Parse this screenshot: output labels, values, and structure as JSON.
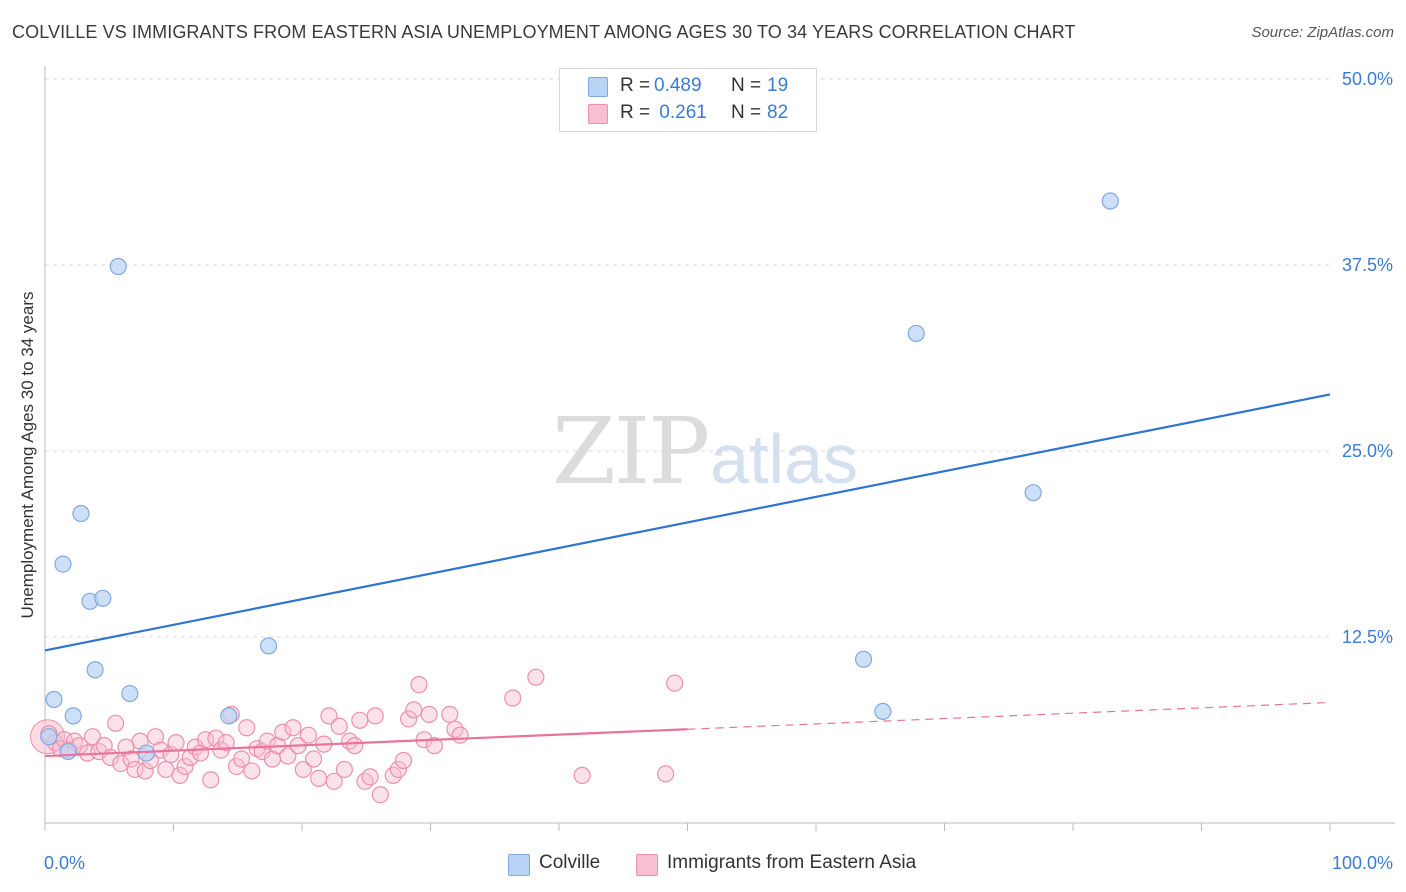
{
  "title": "COLVILLE VS IMMIGRANTS FROM EASTERN ASIA UNEMPLOYMENT AMONG AGES 30 TO 34 YEARS CORRELATION CHART",
  "source": "Source: ZipAtlas.com",
  "watermark": {
    "zip": "ZIP",
    "atlas": "atlas"
  },
  "colors": {
    "blue_fill": "#b9d3f5",
    "blue_stroke": "#7fa9e0",
    "blue_line": "#2f74d0",
    "pink_fill": "#f7bfd0",
    "pink_stroke": "#ec8fab",
    "pink_line": "#e8739b",
    "grid": "#d9d9d9",
    "tick_label": "#3a7bd5"
  },
  "legend": {
    "rows": [
      {
        "r_label": "R =",
        "r_value": "0.489",
        "n_label": "N =",
        "n_value": "19"
      },
      {
        "r_label": "R =",
        "r_value": " 0.261",
        "n_label": "N =",
        "n_value": "82"
      }
    ]
  },
  "bottom_legend": {
    "series1": "Colville",
    "series2": "Immigrants from Eastern Asia"
  },
  "chart_data": {
    "type": "scatter",
    "title": "COLVILLE VS IMMIGRANTS FROM EASTERN ASIA UNEMPLOYMENT AMONG AGES 30 TO 34 YEARS CORRELATION CHART",
    "xlabel": "",
    "ylabel": "Unemployment Among Ages 30 to 34 years",
    "xlim": [
      0,
      100
    ],
    "ylim": [
      0,
      50
    ],
    "x_tick_labels": [
      "0.0%",
      "100.0%"
    ],
    "y_ticks": [
      12.5,
      25.0,
      37.5,
      50.0
    ],
    "y_tick_labels": [
      "12.5%",
      "25.0%",
      "37.5%",
      "50.0%"
    ],
    "series": [
      {
        "name": "Colville",
        "r": 0.489,
        "n": 19,
        "points": [
          [
            0.3,
            5.8
          ],
          [
            0.7,
            8.3
          ],
          [
            1.4,
            17.4
          ],
          [
            1.8,
            4.8
          ],
          [
            2.2,
            7.2
          ],
          [
            2.8,
            20.8
          ],
          [
            3.5,
            14.9
          ],
          [
            3.9,
            10.3
          ],
          [
            4.5,
            15.1
          ],
          [
            5.7,
            37.4
          ],
          [
            6.6,
            8.7
          ],
          [
            7.9,
            4.7
          ],
          [
            14.3,
            7.2
          ],
          [
            17.4,
            11.9
          ],
          [
            63.7,
            11.0
          ],
          [
            65.2,
            7.5
          ],
          [
            67.8,
            32.9
          ],
          [
            76.9,
            22.2
          ],
          [
            82.9,
            41.8
          ]
        ],
        "trend": {
          "x": [
            0,
            100
          ],
          "y": [
            11.6,
            28.8
          ],
          "style": "solid"
        }
      },
      {
        "name": "Immigrants from Eastern Asia",
        "r": 0.261,
        "n": 82,
        "points": [
          [
            0.3,
            6.0
          ],
          [
            0.8,
            5.4
          ],
          [
            1.2,
            5.0
          ],
          [
            1.5,
            5.6
          ],
          [
            1.9,
            4.9
          ],
          [
            2.3,
            5.5
          ],
          [
            2.7,
            5.2
          ],
          [
            3.3,
            4.7
          ],
          [
            3.7,
            5.8
          ],
          [
            4.2,
            4.8
          ],
          [
            4.6,
            5.2
          ],
          [
            5.1,
            4.4
          ],
          [
            5.5,
            6.7
          ],
          [
            5.9,
            4.0
          ],
          [
            6.3,
            5.1
          ],
          [
            6.7,
            4.3
          ],
          [
            7.0,
            3.6
          ],
          [
            7.4,
            5.5
          ],
          [
            7.8,
            3.5
          ],
          [
            8.2,
            4.2
          ],
          [
            8.6,
            5.8
          ],
          [
            9.0,
            4.9
          ],
          [
            9.4,
            3.6
          ],
          [
            9.8,
            4.6
          ],
          [
            10.2,
            5.4
          ],
          [
            10.5,
            3.2
          ],
          [
            10.9,
            3.8
          ],
          [
            11.3,
            4.4
          ],
          [
            11.7,
            5.1
          ],
          [
            12.1,
            4.7
          ],
          [
            12.5,
            5.6
          ],
          [
            12.9,
            2.9
          ],
          [
            13.3,
            5.7
          ],
          [
            13.7,
            4.9
          ],
          [
            14.1,
            5.4
          ],
          [
            14.5,
            7.3
          ],
          [
            14.9,
            3.8
          ],
          [
            15.3,
            4.3
          ],
          [
            15.7,
            6.4
          ],
          [
            16.1,
            3.5
          ],
          [
            16.5,
            5.0
          ],
          [
            16.9,
            4.8
          ],
          [
            17.3,
            5.5
          ],
          [
            17.7,
            4.3
          ],
          [
            18.1,
            5.2
          ],
          [
            18.5,
            6.1
          ],
          [
            18.9,
            4.5
          ],
          [
            19.3,
            6.4
          ],
          [
            19.7,
            5.2
          ],
          [
            20.1,
            3.6
          ],
          [
            20.5,
            5.9
          ],
          [
            20.9,
            4.3
          ],
          [
            21.3,
            3.0
          ],
          [
            21.7,
            5.3
          ],
          [
            22.1,
            7.2
          ],
          [
            22.5,
            2.8
          ],
          [
            22.9,
            6.5
          ],
          [
            23.3,
            3.6
          ],
          [
            23.7,
            5.5
          ],
          [
            24.1,
            5.2
          ],
          [
            24.5,
            6.9
          ],
          [
            24.9,
            2.8
          ],
          [
            25.3,
            3.1
          ],
          [
            25.7,
            7.2
          ],
          [
            26.1,
            1.9
          ],
          [
            27.1,
            3.2
          ],
          [
            27.5,
            3.6
          ],
          [
            27.9,
            4.2
          ],
          [
            28.3,
            7.0
          ],
          [
            28.7,
            7.6
          ],
          [
            29.1,
            9.3
          ],
          [
            29.5,
            5.6
          ],
          [
            29.9,
            7.3
          ],
          [
            30.3,
            5.2
          ],
          [
            31.5,
            7.3
          ],
          [
            31.9,
            6.3
          ],
          [
            32.3,
            5.9
          ],
          [
            36.4,
            8.4
          ],
          [
            38.2,
            9.8
          ],
          [
            41.8,
            3.2
          ],
          [
            48.3,
            3.3
          ],
          [
            49.0,
            9.4
          ]
        ],
        "trend": {
          "x": [
            0,
            100
          ],
          "y": [
            4.5,
            8.1
          ],
          "solid_until_x": 50,
          "style": "solid-then-dashed"
        }
      }
    ]
  }
}
